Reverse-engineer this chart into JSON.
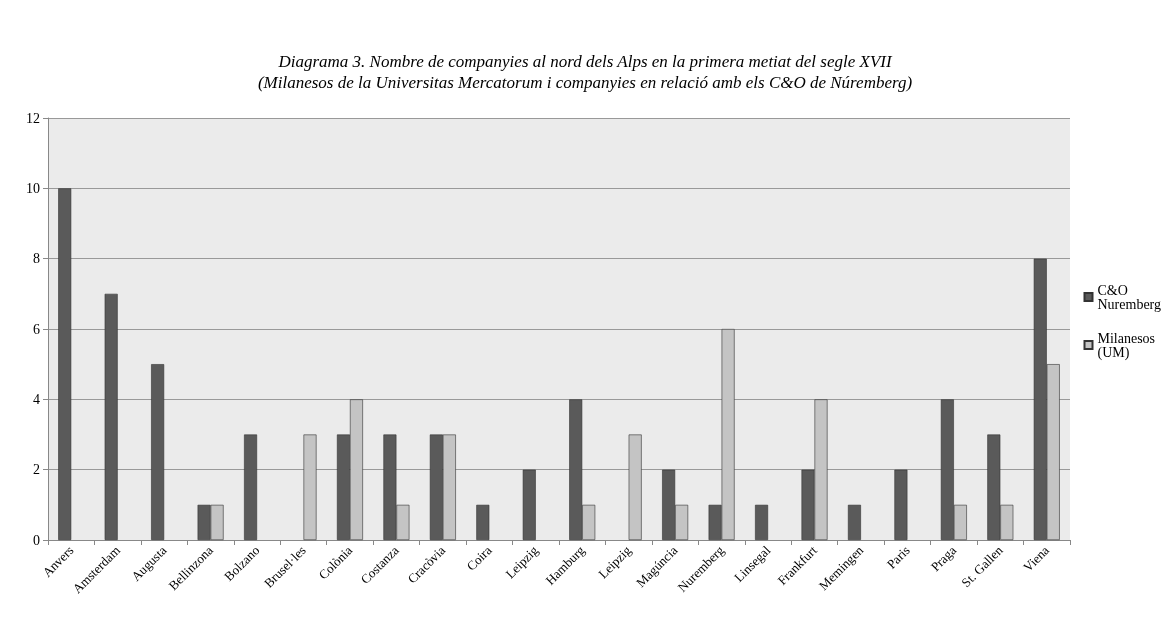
{
  "chart_data": {
    "type": "bar",
    "title": "Diagrama 3. Nombre de companyies al nord dels Alps en la primera metiat del segle XVII",
    "subtitle": "(Milanesos de la Universitas Mercatorum i companyies en relació amb els C&O de Núremberg)",
    "categories": [
      "Anvers",
      "Amsterdam",
      "Augusta",
      "Bellinzona",
      "Bolzano",
      "Brusel·les",
      "Colònia",
      "Costanza",
      "Cracòvia",
      "Coira",
      "Leipzig",
      "Hamburg",
      "Leipzig",
      "Magúncia",
      "Nuremberg",
      "Linsegal",
      "Frankfurt",
      "Memingen",
      "Paris",
      "Praga",
      "St. Gallen",
      "Viena"
    ],
    "series": [
      {
        "name": "C&O Nuremberg",
        "color": "#5a5a5a",
        "values": [
          10,
          7,
          5,
          1,
          3,
          0,
          3,
          3,
          3,
          1,
          2,
          4,
          0,
          2,
          1,
          1,
          2,
          1,
          2,
          4,
          3,
          8
        ]
      },
      {
        "name": "Milanesos (UM)",
        "color": "#c4c4c4",
        "values": [
          0,
          0,
          0,
          1,
          0,
          3,
          4,
          1,
          3,
          0,
          0,
          1,
          3,
          1,
          6,
          0,
          4,
          0,
          0,
          1,
          1,
          5
        ]
      }
    ],
    "ylim": [
      0,
      12
    ],
    "yticks": [
      0,
      2,
      4,
      6,
      8,
      10,
      12
    ],
    "grid": "y",
    "legend": "right"
  }
}
